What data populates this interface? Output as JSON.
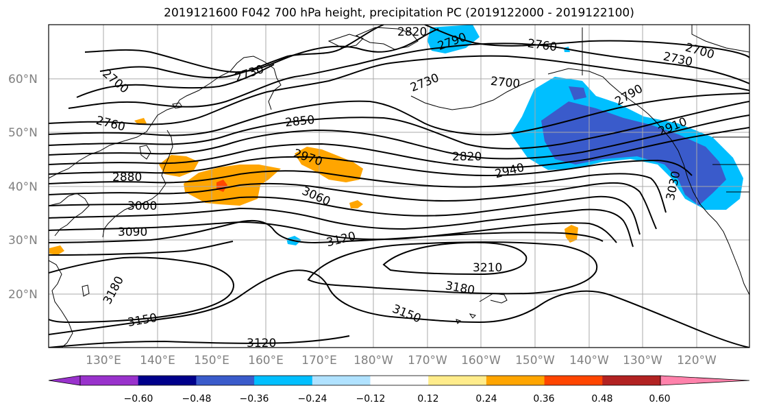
{
  "title": "2019121600 F042 700 hPa height, precipitation PC (2019122000 - 2019122100)",
  "lon_ticks": [
    "130°E",
    "140°E",
    "150°E",
    "160°E",
    "170°E",
    "180°W",
    "170°W",
    "160°W",
    "150°W",
    "140°W",
    "130°W",
    "120°W"
  ],
  "lat_ticks": [
    "60°N",
    "50°N",
    "40°N",
    "30°N",
    "20°N"
  ],
  "contour_labels": [
    "2820",
    "2790",
    "2760",
    "2730",
    "2700",
    "2730",
    "2700",
    "2730",
    "2700",
    "2760",
    "2850",
    "2880",
    "2970",
    "2820",
    "2940",
    "2910",
    "3000",
    "3060",
    "3030",
    "3090",
    "3120",
    "3210",
    "3180",
    "3180",
    "3150",
    "3150",
    "3120",
    "2790"
  ],
  "colorbar": {
    "ticks": [
      "−0.60",
      "−0.48",
      "−0.36",
      "−0.24",
      "−0.12",
      "0.12",
      "0.24",
      "0.36",
      "0.48",
      "0.60"
    ],
    "colors": [
      "#9932cc",
      "#00008b",
      "#3a5bcb",
      "#00bfff",
      "#b0e2ff",
      "#ffffff",
      "#ffec8b",
      "#ffa500",
      "#ff4500",
      "#b22222",
      "#ff82ab"
    ]
  }
}
